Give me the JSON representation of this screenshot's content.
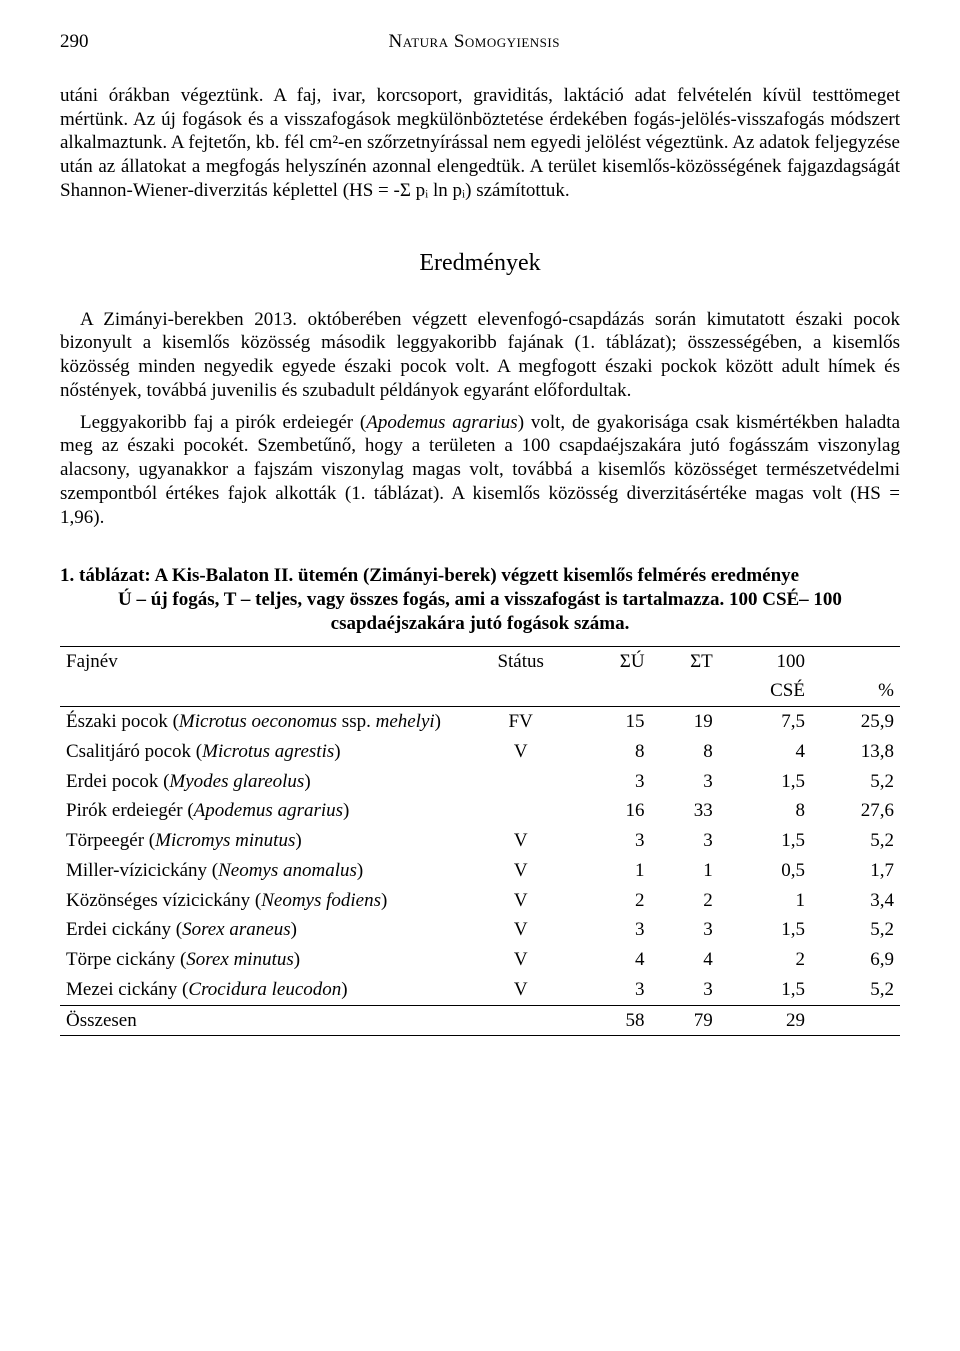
{
  "header": {
    "page_number": "290",
    "journal": "Natura Somogyiensis"
  },
  "para1": "utáni órákban végeztünk. A faj, ivar, korcsoport, graviditás, laktáció adat felvételén kívül testtömeget mértünk. Az új fogások és a visszafogások megkülönböztetése érdekében fogás-jelölés-visszafogás módszert alkalmaztunk. A fejtetőn, kb. fél cm²-en szőrzetnyírással nem egyedi jelölést végeztünk. Az adatok feljegyzése után az állatokat a megfogás helyszínén azonnal elengedtük. A terület kisemlős-közösségének fajgazdagságát Shannon-Wiener-diverzitás képlettel (HS = -Σ pᵢ ln pᵢ) számítottuk.",
  "section_title": "Eredmények",
  "para2": "A Zimányi-berekben 2013. októberében végzett elevenfogó-csapdázás során kimutatott északi pocok bizonyult a kisemlős közösség második leggyakoribb fajának (1. táblázat); összességében, a kisemlős közösség minden negyedik egyede északi pocok volt. A megfogott északi pockok között adult hímek és nőstények, továbbá juvenilis és szubadult példányok egyaránt előfordultak.",
  "para3_a": "Leggyakoribb faj a pirók erdeiegér (",
  "para3_italic": "Apodemus agrarius",
  "para3_b": ") volt, de gyakorisága csak kismértékben haladta meg az északi pocokét. Szembetűnő, hogy a területen a 100 csapdaéjszakára jutó fogásszám viszonylag alacsony, ugyanakkor a fajszám viszonylag magas volt, továbbá a kisemlős közösséget természetvédelmi szempontból értékes fajok alkották (1. táblázat). A kisemlős közösség diverzitásértéke magas volt (HS = 1,96).",
  "table": {
    "caption_line1": "1. táblázat: A Kis-Balaton II. ütemén (Zimányi-berek) végzett kisemlős felmérés eredménye",
    "caption_line2": "Ú – új fogás, T – teljes, vagy összes fogás, ami a visszafogást is tartalmazza. 100 CSÉ– 100 csapdaéjszakára jutó fogások száma.",
    "columns": {
      "species": "Fajnév",
      "status": "Státus",
      "su": "ΣÚ",
      "st": "ΣT",
      "cse": "100 CSÉ",
      "cse_top": "100",
      "cse_bottom": "CSÉ",
      "pct": "%"
    },
    "rows": [
      {
        "name_pre": "Északi pocok (",
        "name_it": "Microtus oeconomus",
        "name_post": " ssp. ",
        "name_it2": "mehelyi",
        "name_end": ")",
        "status": "FV",
        "su": "15",
        "st": "19",
        "cse": "7,5",
        "pct": "25,9"
      },
      {
        "name_pre": "Csalitjáró pocok (",
        "name_it": "Microtus agrestis",
        "name_post": ")",
        "name_it2": "",
        "name_end": "",
        "status": "V",
        "su": "8",
        "st": "8",
        "cse": "4",
        "pct": "13,8"
      },
      {
        "name_pre": "Erdei pocok (",
        "name_it": "Myodes glareolus",
        "name_post": ")",
        "name_it2": "",
        "name_end": "",
        "status": "",
        "su": "3",
        "st": "3",
        "cse": "1,5",
        "pct": "5,2"
      },
      {
        "name_pre": "Pirók erdeiegér (",
        "name_it": "Apodemus agrarius",
        "name_post": ")",
        "name_it2": "",
        "name_end": "",
        "status": "",
        "su": "16",
        "st": "33",
        "cse": "8",
        "pct": "27,6"
      },
      {
        "name_pre": "Törpeegér (",
        "name_it": "Micromys minutus",
        "name_post": ")",
        "name_it2": "",
        "name_end": "",
        "status": "V",
        "su": "3",
        "st": "3",
        "cse": "1,5",
        "pct": "5,2"
      },
      {
        "name_pre": "Miller-vízicickány (",
        "name_it": "Neomys anomalus",
        "name_post": ")",
        "name_it2": "",
        "name_end": "",
        "status": "V",
        "su": "1",
        "st": "1",
        "cse": "0,5",
        "pct": "1,7"
      },
      {
        "name_pre": "Közönséges vízicickány (",
        "name_it": "Neomys fodiens",
        "name_post": ")",
        "name_it2": "",
        "name_end": "",
        "status": "V",
        "su": "2",
        "st": "2",
        "cse": "1",
        "pct": "3,4"
      },
      {
        "name_pre": "Erdei cickány (",
        "name_it": "Sorex araneus",
        "name_post": ")",
        "name_it2": "",
        "name_end": "",
        "status": "V",
        "su": "3",
        "st": "3",
        "cse": "1,5",
        "pct": "5,2"
      },
      {
        "name_pre": "Törpe cickány (",
        "name_it": "Sorex minutus",
        "name_post": ")",
        "name_it2": "",
        "name_end": "",
        "status": "V",
        "su": "4",
        "st": "4",
        "cse": "2",
        "pct": "6,9"
      },
      {
        "name_pre": "Mezei cickány (",
        "name_it": "Crocidura leucodon",
        "name_post": ")",
        "name_it2": "",
        "name_end": "",
        "status": "V",
        "su": "3",
        "st": "3",
        "cse": "1,5",
        "pct": "5,2"
      }
    ],
    "total": {
      "label": "Összesen",
      "su": "58",
      "st": "79",
      "cse": "29",
      "pct": ""
    }
  }
}
